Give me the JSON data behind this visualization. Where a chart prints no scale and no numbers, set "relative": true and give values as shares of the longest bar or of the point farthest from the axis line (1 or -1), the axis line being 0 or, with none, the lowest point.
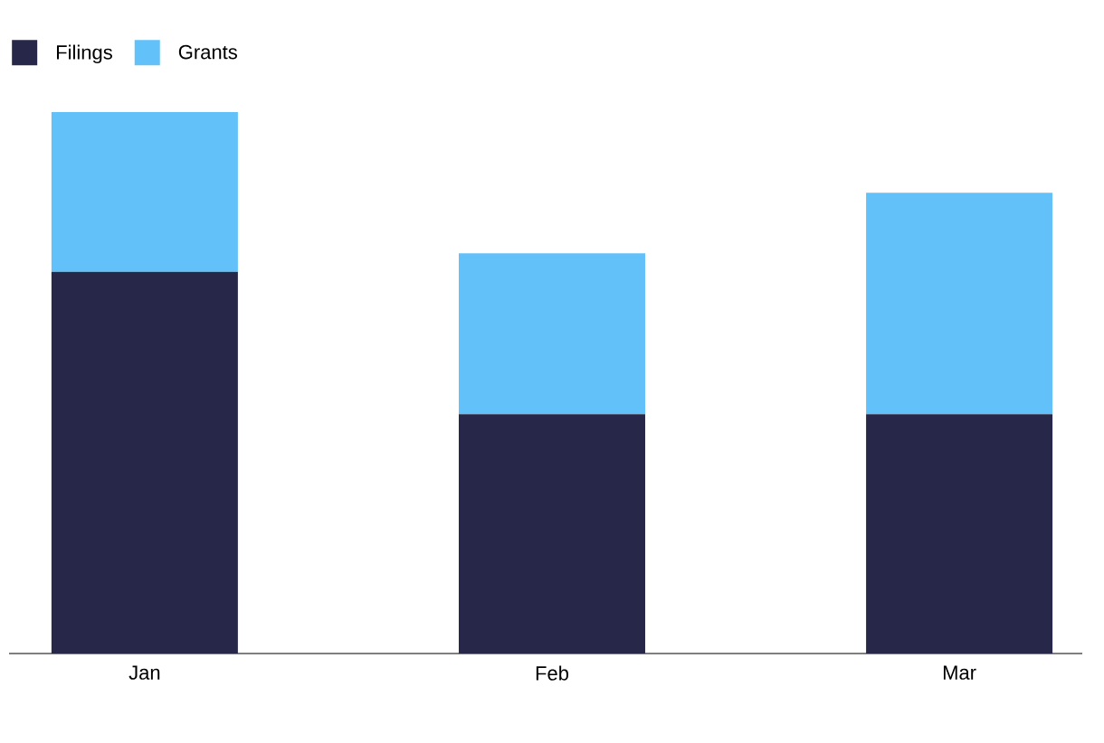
{
  "chart_data": {
    "type": "bar",
    "stacked": true,
    "relative": true,
    "legend": "top left",
    "categories": [
      "Jan",
      "Feb",
      "Mar"
    ],
    "series": [
      {
        "name": "Filings",
        "color": "#272849",
        "values": [
          0.705,
          0.442,
          0.442
        ]
      },
      {
        "name": "Grants",
        "color": "#62c1f9",
        "values": [
          0.295,
          0.297,
          0.409
        ]
      }
    ]
  }
}
